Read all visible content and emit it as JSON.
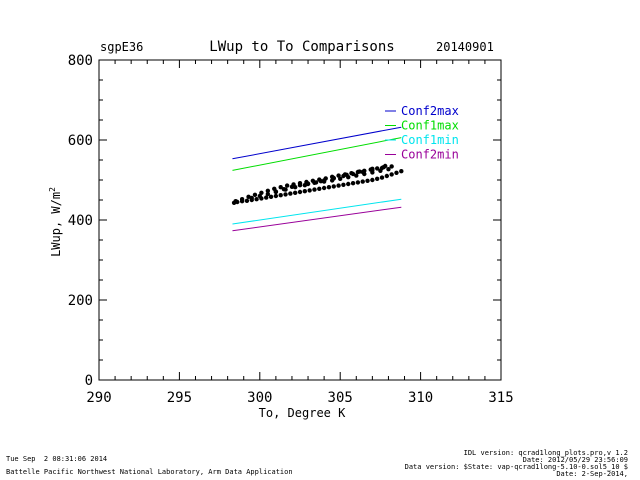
{
  "header": {
    "site": "sgpE36",
    "title": "LWup to To Comparisons",
    "date": "20140901"
  },
  "chart_data": {
    "type": "scatter",
    "title": "LWup to To Comparisons",
    "xlabel": "To, Degree K",
    "ylabel": "LWup, W/m",
    "ylabel_sup": "2",
    "xlim": [
      290,
      315
    ],
    "ylim": [
      0,
      800
    ],
    "xticks": [
      290,
      295,
      300,
      305,
      310,
      315
    ],
    "yticks": [
      0,
      200,
      400,
      600,
      800
    ],
    "grid": false,
    "legend_position": "top-right",
    "lines": [
      {
        "name": "Conf2max",
        "color": "#0000cc",
        "x": [
          298.3,
          308.8
        ],
        "y": [
          553,
          632
        ]
      },
      {
        "name": "Conf1max",
        "color": "#00dd00",
        "x": [
          298.3,
          308.8
        ],
        "y": [
          524,
          606
        ]
      },
      {
        "name": "Conf1min",
        "color": "#00e5ee",
        "x": [
          298.3,
          308.8
        ],
        "y": [
          390,
          452
        ]
      },
      {
        "name": "Conf2min",
        "color": "#990099",
        "x": [
          298.3,
          308.8
        ],
        "y": [
          373,
          432
        ]
      }
    ],
    "scatter": {
      "color": "#000000",
      "x": [
        298.4,
        298.6,
        298.9,
        299.2,
        299.5,
        299.8,
        300.1,
        300.4,
        300.7,
        301.0,
        301.3,
        301.6,
        301.9,
        302.2,
        302.5,
        302.8,
        303.1,
        303.4,
        303.7,
        304.0,
        304.3,
        304.6,
        304.9,
        305.2,
        305.5,
        305.8,
        306.1,
        306.4,
        306.7,
        307.0,
        307.3,
        307.6,
        307.9,
        308.2,
        308.5,
        308.8,
        298.5,
        298.9,
        299.3,
        299.7,
        300.1,
        300.5,
        300.9,
        301.3,
        301.7,
        302.1,
        302.5,
        302.9,
        303.3,
        303.7,
        304.1,
        304.5,
        304.9,
        305.3,
        305.7,
        306.1,
        306.5,
        306.9,
        307.3,
        307.7,
        299.5,
        300.0,
        300.5,
        301.0,
        301.5,
        302.0,
        302.5,
        303.0,
        303.5,
        304.0,
        304.5,
        305.0,
        305.5,
        306.0,
        306.5,
        307.0,
        307.5,
        308.0,
        301.0,
        301.6,
        302.2,
        302.8,
        303.4,
        304.0,
        304.6,
        305.2,
        305.8,
        306.4,
        307.0,
        307.6,
        308.2,
        303.0,
        303.8,
        304.6,
        305.4,
        306.2,
        307.0,
        307.8
      ],
      "y": [
        443,
        445,
        447,
        448,
        450,
        452,
        454,
        456,
        458,
        460,
        462,
        464,
        466,
        468,
        470,
        472,
        474,
        476,
        478,
        480,
        482,
        484,
        486,
        488,
        490,
        492,
        494,
        496,
        498,
        500,
        503,
        506,
        510,
        514,
        518,
        522,
        447,
        452,
        458,
        463,
        468,
        473,
        478,
        482,
        486,
        489,
        492,
        495,
        498,
        501,
        504,
        508,
        511,
        514,
        517,
        520,
        523,
        526,
        529,
        532,
        455,
        460,
        465,
        471,
        477,
        483,
        487,
        491,
        494,
        496,
        499,
        503,
        507,
        511,
        515,
        519,
        523,
        527,
        470,
        476,
        482,
        487,
        493,
        499,
        504,
        510,
        515,
        520,
        525,
        530,
        534,
        490,
        497,
        505,
        513,
        521,
        528,
        535
      ]
    }
  },
  "footer": {
    "timestamp": "Tue Sep  2 08:31:06 2014",
    "institution": "Battelle Pacific Northwest National Laboratory, Arm Data Application",
    "idl_version": "IDL version: qcrad1long_plots.pro,v 1.2",
    "idl_date": "Date: 2012/05/29 23:56:09",
    "data_version": "Data version: $State: vap-qcrad1long-5.10-0.sol5_10 $",
    "data_date": "Date: 2-Sep-2014,"
  }
}
